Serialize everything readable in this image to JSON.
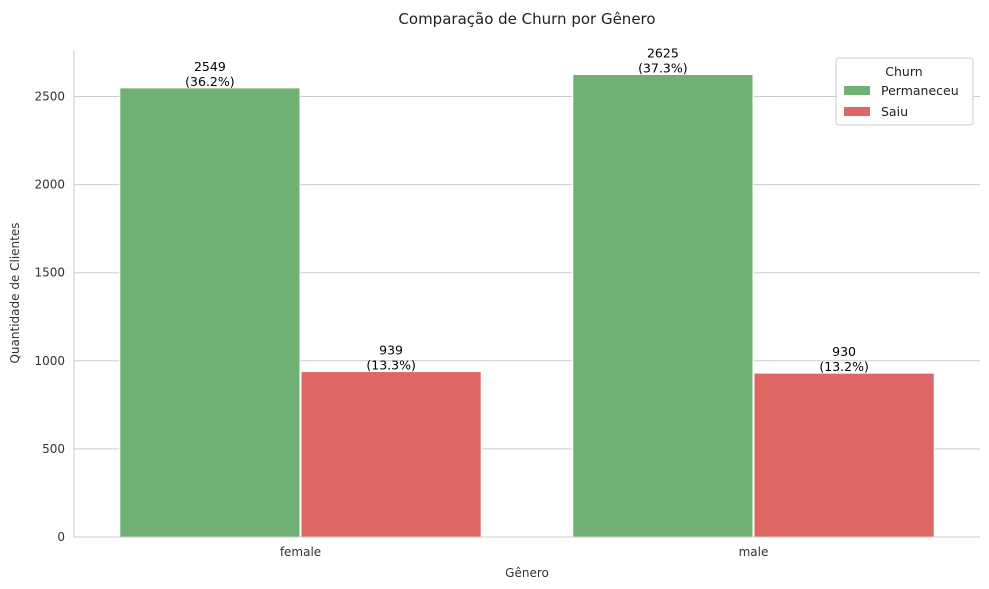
{
  "chart_data": {
    "type": "bar",
    "title": "Comparação de Churn por Gênero",
    "xlabel": "Gênero",
    "ylabel": "Quantidade de Clientes",
    "categories": [
      "female",
      "male"
    ],
    "series": [
      {
        "name": "Permaneceu",
        "color": "#6fb073",
        "values": [
          2549,
          2625
        ],
        "labels": [
          [
            "2549",
            "(36.2%)"
          ],
          [
            "2625",
            "(37.3%)"
          ]
        ]
      },
      {
        "name": "Saiu",
        "color": "#de6664",
        "values": [
          939,
          930
        ],
        "labels": [
          [
            "939",
            "(13.3%)"
          ],
          [
            "930",
            "(13.2%)"
          ]
        ]
      }
    ],
    "ylim": [
      0,
      2764
    ],
    "yticks": [
      0,
      500,
      1000,
      1500,
      2000,
      2500
    ],
    "grid": "horizontal",
    "legend": {
      "title": "Churn",
      "placement": "top-right"
    }
  }
}
